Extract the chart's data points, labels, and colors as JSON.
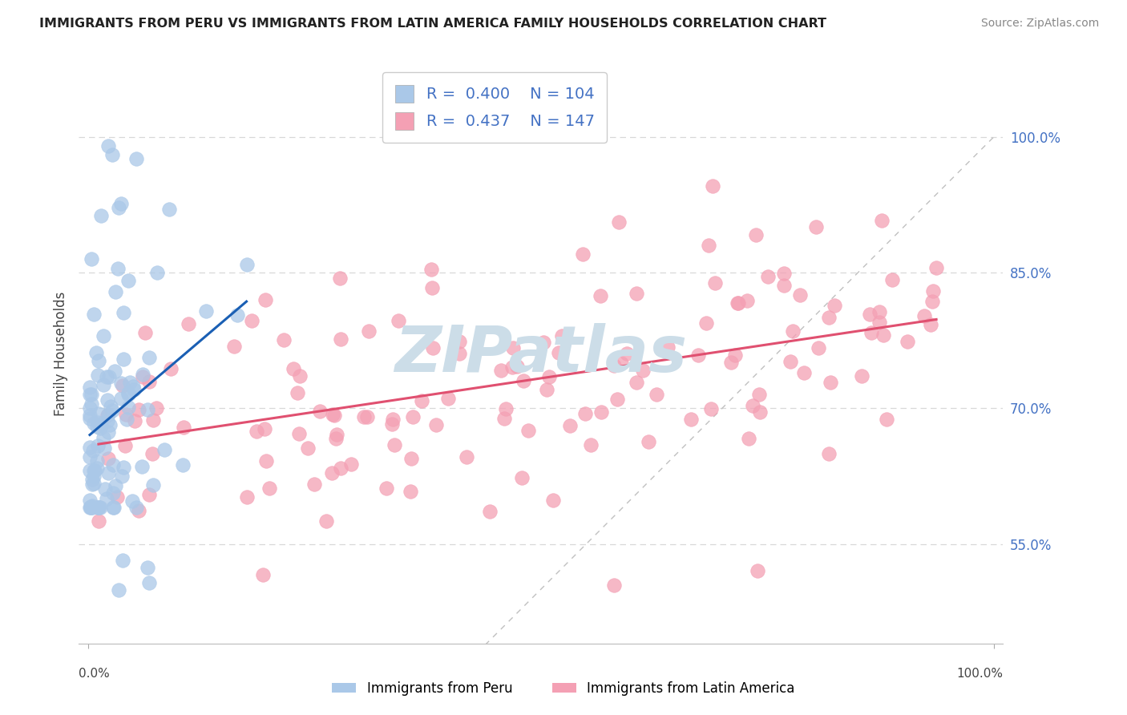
{
  "title": "IMMIGRANTS FROM PERU VS IMMIGRANTS FROM LATIN AMERICA FAMILY HOUSEHOLDS CORRELATION CHART",
  "source": "Source: ZipAtlas.com",
  "ylabel": "Family Households",
  "y_tick_labels": [
    "55.0%",
    "70.0%",
    "85.0%",
    "100.0%"
  ],
  "y_tick_values": [
    0.55,
    0.7,
    0.85,
    1.0
  ],
  "xlim": [
    -0.01,
    1.01
  ],
  "ylim": [
    0.44,
    1.08
  ],
  "peru_R": 0.4,
  "peru_N": 104,
  "latam_R": 0.437,
  "latam_N": 147,
  "blue_color": "#aac8e8",
  "pink_color": "#f4a0b4",
  "blue_line_color": "#1a5fb4",
  "pink_line_color": "#e05070",
  "ref_line_color": "#c0c0c0",
  "watermark_color": "#ccdde8",
  "grid_color": "#d8d8d8",
  "title_fontsize": 11.5,
  "source_fontsize": 10,
  "tick_fontsize": 12,
  "legend_fontsize": 14,
  "ylabel_fontsize": 12
}
